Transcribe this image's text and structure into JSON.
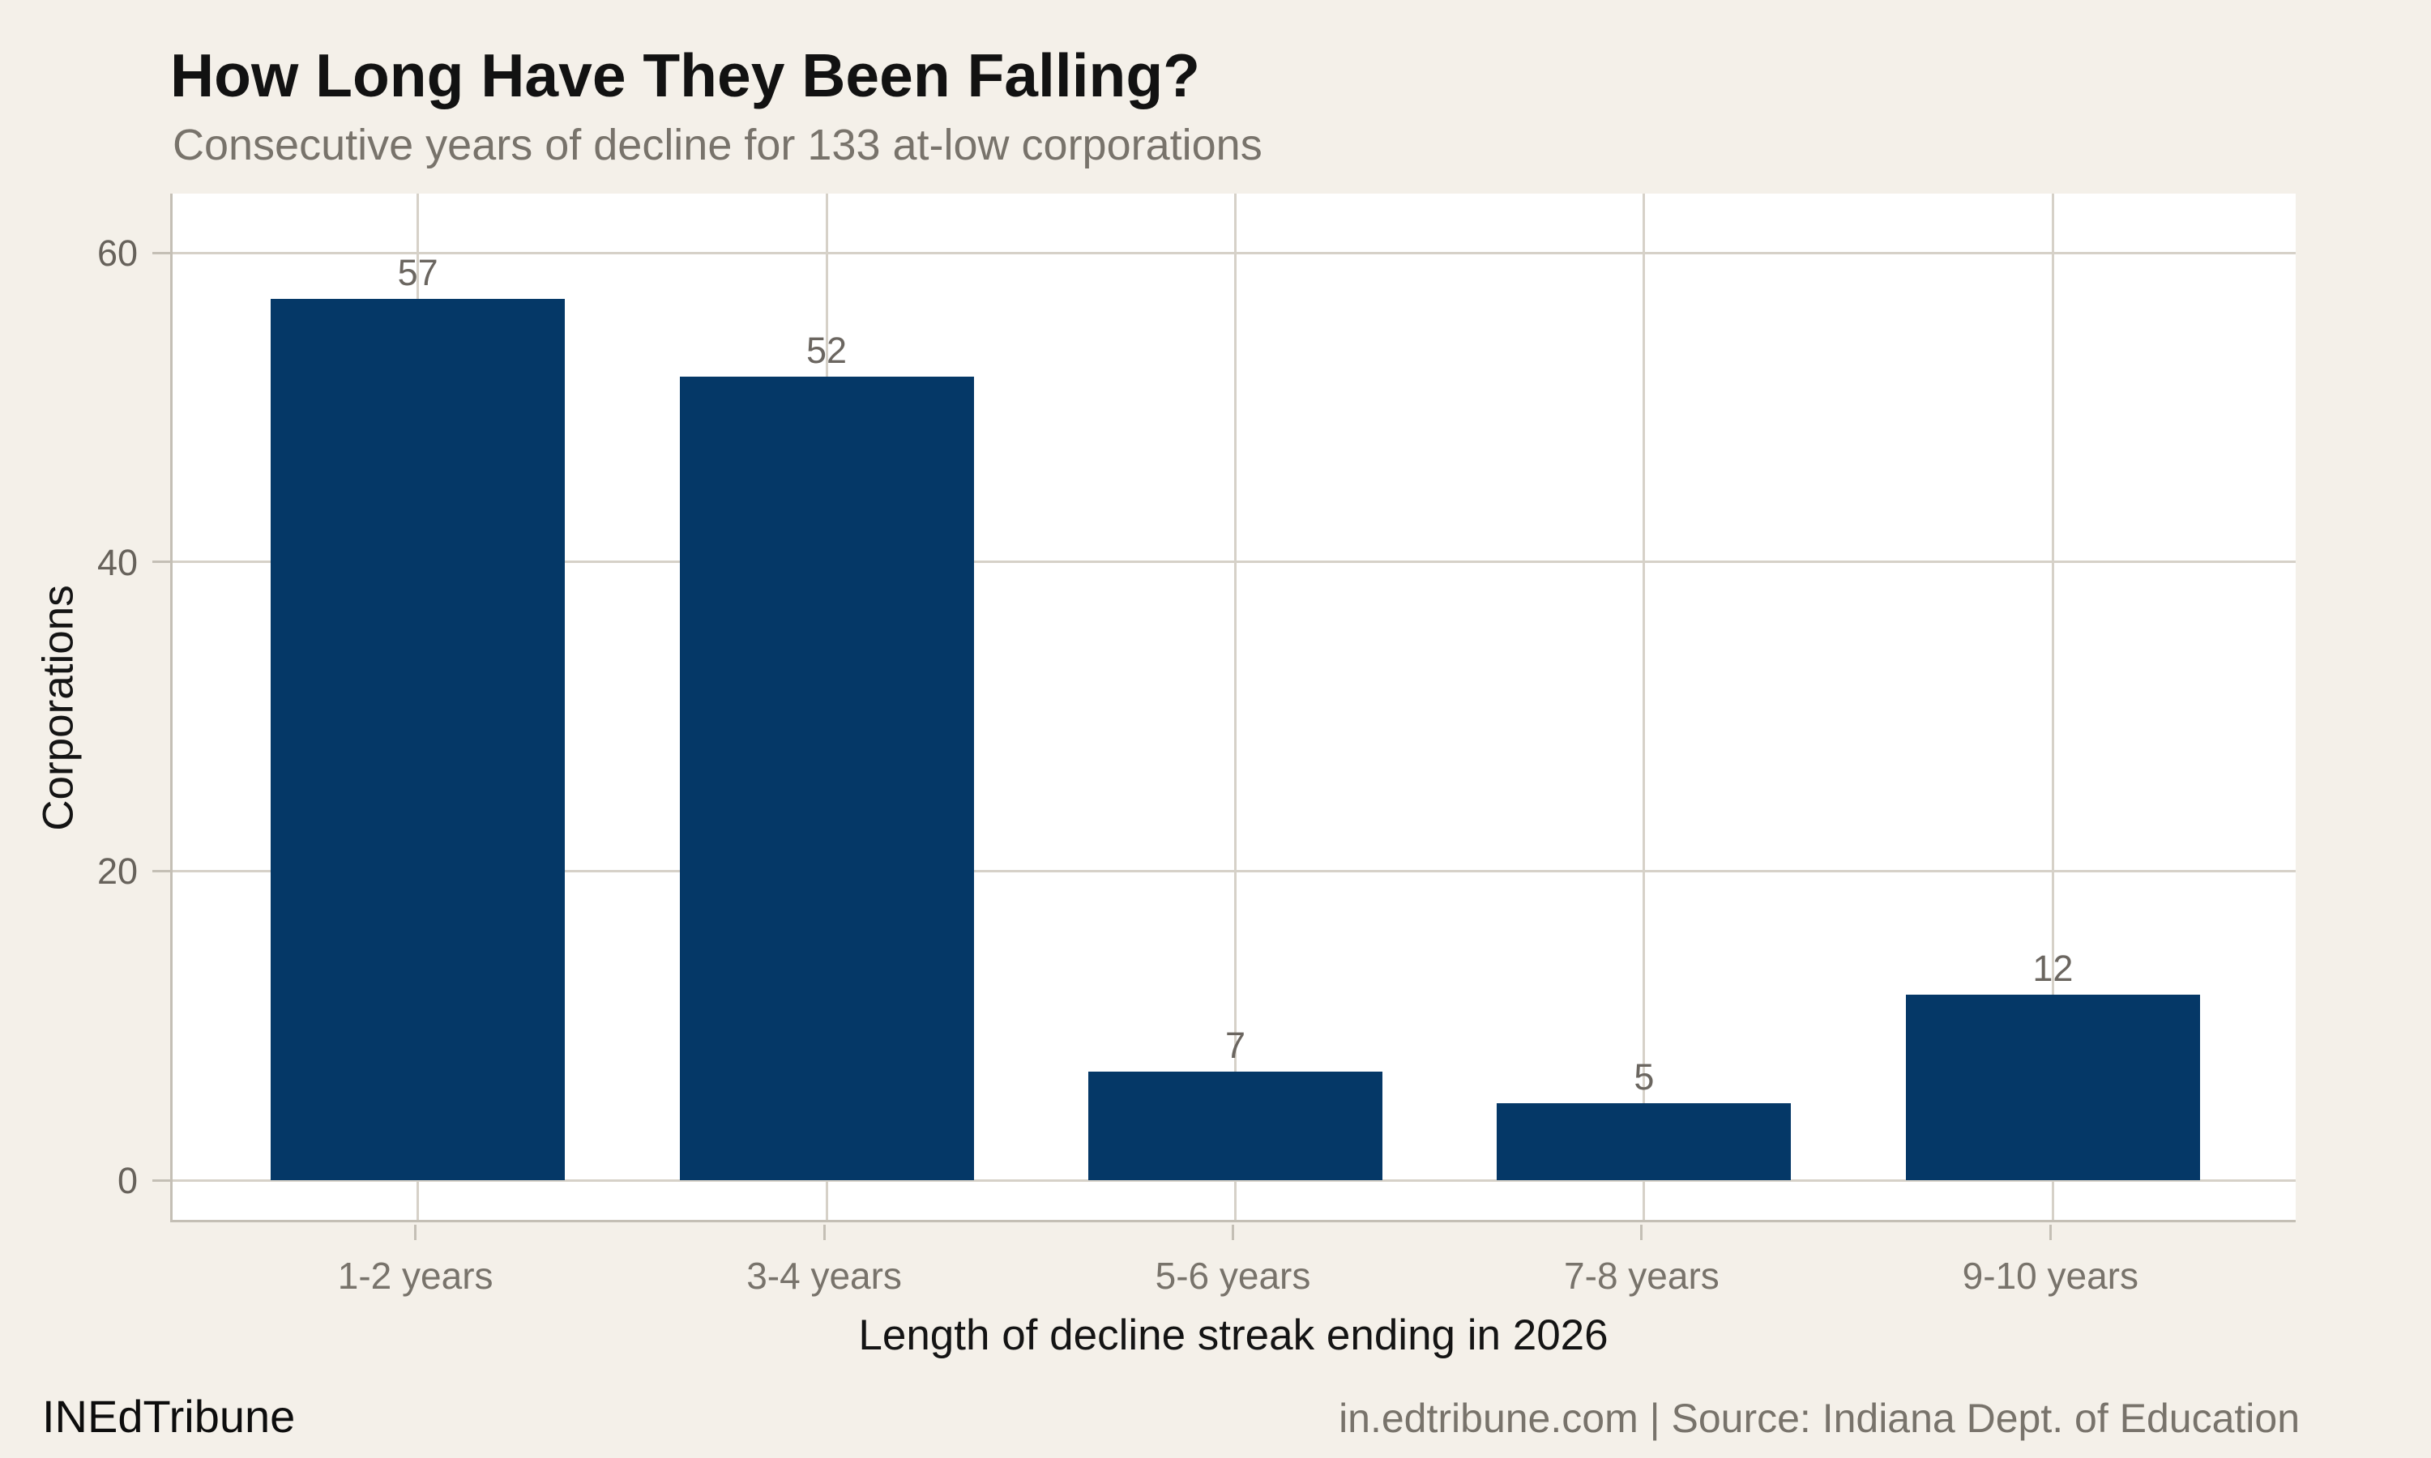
{
  "header": {
    "title": "How Long Have They Been Falling?",
    "subtitle": "Consecutive years of decline for 133 at-low corporations"
  },
  "footer": {
    "brand": "INEdTribune",
    "source": "in.edtribune.com | Source: Indiana Dept. of Education"
  },
  "chart_data": {
    "type": "bar",
    "title": "How Long Have They Been Falling?",
    "subtitle": "Consecutive years of decline for 133 at-low corporations",
    "categories": [
      "1-2 years",
      "3-4 years",
      "5-6 years",
      "7-8 years",
      "9-10 years"
    ],
    "values": [
      57,
      52,
      7,
      5,
      12
    ],
    "bar_labels": [
      "57",
      "52",
      "7",
      "5",
      "12"
    ],
    "xlabel": "Length of decline streak ending in 2026",
    "ylabel": "Corporations",
    "yticks": [
      0,
      20,
      40,
      60
    ],
    "ylim": [
      0,
      63.8
    ],
    "grid": true,
    "legend_position": "none"
  },
  "colors": {
    "background": "#f4f0e9",
    "panel": "#ffffff",
    "bar": "#053867",
    "grid": "#d6d1c8",
    "axis_line": "#c4bfb5",
    "title_text": "#121212",
    "muted_text": "#78736b",
    "tick_text": "#67625b",
    "axis_title_text": "#141414"
  }
}
